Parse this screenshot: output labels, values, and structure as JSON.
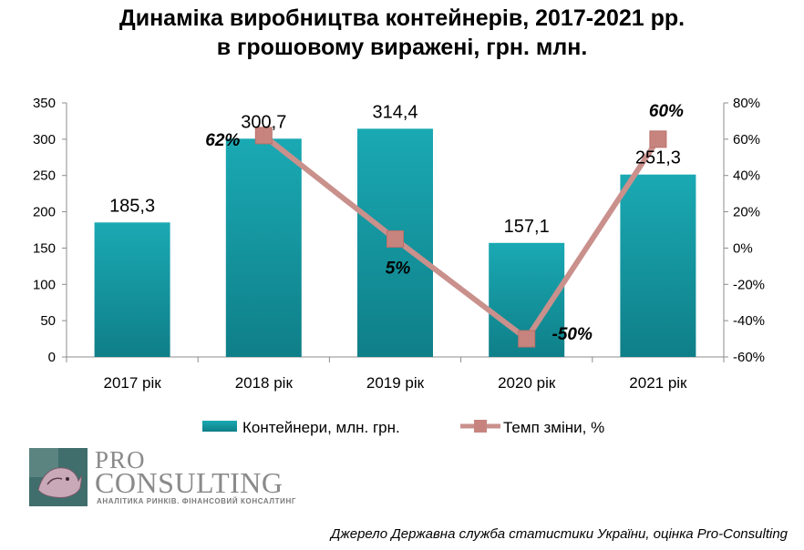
{
  "title": {
    "line1": "Динаміка виробництва контейнерів, 2017-2021 рр.",
    "line2": "в грошовому виражені, грн. млн."
  },
  "chart_data": {
    "type": "bar",
    "categories": [
      "2017 рік",
      "2018 рік",
      "2019 рік",
      "2020 рік",
      "2021 рік"
    ],
    "series": [
      {
        "name": "Контейнери, млн. грн.",
        "type": "bar",
        "axis": "left",
        "values": [
          185.3,
          300.7,
          314.4,
          157.1,
          251.3
        ],
        "labels": [
          "185,3",
          "300,7",
          "314,4",
          "157,1",
          "251,3"
        ],
        "color": "#17a1ac"
      },
      {
        "name": "Темп зміни, %",
        "type": "line",
        "axis": "right",
        "values": [
          null,
          62,
          5,
          -50,
          60
        ],
        "labels": [
          "",
          "62%",
          "5%",
          "-50%",
          "60%"
        ],
        "color": "#c9908c",
        "marker_color": "#c7847e"
      }
    ],
    "y_left": {
      "min": 0,
      "max": 350,
      "step": 50,
      "ticks": [
        "0",
        "50",
        "100",
        "150",
        "200",
        "250",
        "300",
        "350"
      ]
    },
    "y_right": {
      "min": -60,
      "max": 80,
      "step": 20,
      "ticks": [
        "-60%",
        "-40%",
        "-20%",
        "0%",
        "20%",
        "40%",
        "60%",
        "80%"
      ]
    },
    "grid": false,
    "legend_position": "bottom"
  },
  "logo": {
    "pro": "PRO",
    "consulting": "CONSULTING",
    "tagline": "АНАЛІТИКА РИНКІВ. ФІНАНСОВИЙ КОНСАЛТИНГ"
  },
  "source": "Джерело Державна служба статистики України, оцінка Pro-Consulting"
}
